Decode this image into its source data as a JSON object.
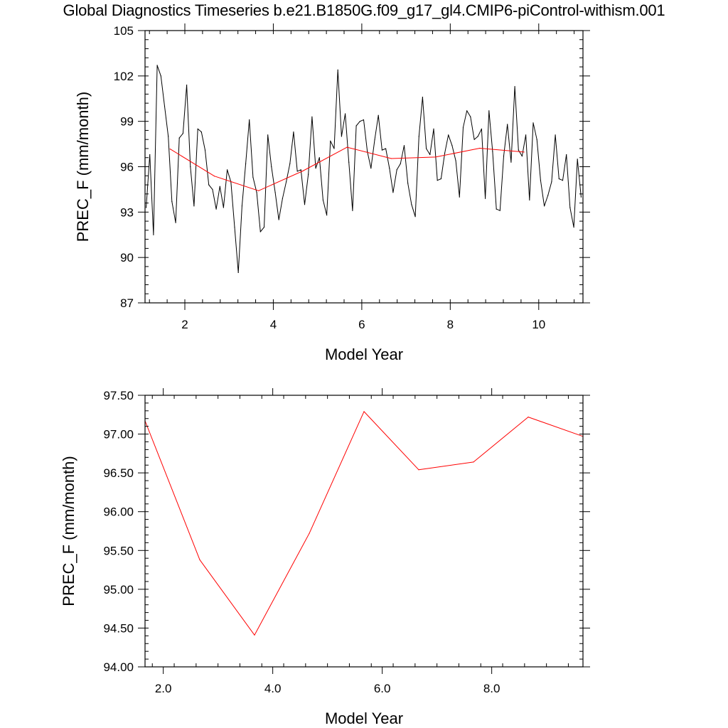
{
  "title": "Global Diagnostics Timeseries b.e21.B1850G.f09_g17_gl4.CMIP6-piControl-withism.001",
  "chart_data": [
    {
      "type": "line",
      "xlabel": "Model Year",
      "ylabel": "PREC_F (mm/month)",
      "xlim": [
        1.1,
        11.0
      ],
      "ylim": [
        87,
        105
      ],
      "xticks": [
        2,
        4,
        6,
        8,
        10
      ],
      "xtick_labels": [
        "2",
        "4",
        "6",
        "8",
        "10"
      ],
      "yticks": [
        87,
        90,
        93,
        96,
        99,
        102,
        105
      ],
      "ytick_labels": [
        "87",
        "90",
        "93",
        "96",
        "99",
        "102",
        "105"
      ],
      "grid": false,
      "series": [
        {
          "color": "#000000",
          "x": [
            1.125,
            1.208,
            1.292,
            1.375,
            1.458,
            1.542,
            1.625,
            1.708,
            1.792,
            1.875,
            1.958,
            2.042,
            2.125,
            2.208,
            2.292,
            2.375,
            2.458,
            2.542,
            2.625,
            2.708,
            2.792,
            2.875,
            2.958,
            3.042,
            3.125,
            3.208,
            3.292,
            3.375,
            3.458,
            3.542,
            3.625,
            3.708,
            3.792,
            3.875,
            3.958,
            4.042,
            4.125,
            4.208,
            4.292,
            4.375,
            4.458,
            4.542,
            4.625,
            4.708,
            4.792,
            4.875,
            4.958,
            5.042,
            5.125,
            5.208,
            5.292,
            5.375,
            5.458,
            5.542,
            5.625,
            5.708,
            5.792,
            5.875,
            5.958,
            6.042,
            6.125,
            6.208,
            6.292,
            6.375,
            6.458,
            6.542,
            6.625,
            6.708,
            6.792,
            6.875,
            6.958,
            7.042,
            7.125,
            7.208,
            7.292,
            7.375,
            7.458,
            7.542,
            7.625,
            7.708,
            7.792,
            7.875,
            7.958,
            8.042,
            8.125,
            8.208,
            8.292,
            8.375,
            8.458,
            8.542,
            8.625,
            8.708,
            8.792,
            8.875,
            8.958,
            9.042,
            9.125,
            9.208,
            9.292,
            9.375,
            9.458,
            9.542,
            9.625,
            9.708,
            9.792,
            9.875,
            9.958,
            10.042,
            10.125,
            10.208,
            10.292,
            10.375,
            10.458,
            10.542,
            10.625,
            10.708,
            10.792,
            10.875,
            10.958
          ],
          "y": [
            93.3,
            96.8,
            91.5,
            102.7,
            102.0,
            100.0,
            98.0,
            93.7,
            92.3,
            97.9,
            98.2,
            101.4,
            96.0,
            93.4,
            98.5,
            98.3,
            97.1,
            94.8,
            94.5,
            93.2,
            94.7,
            93.3,
            95.8,
            95.0,
            92.0,
            89.0,
            93.4,
            96.2,
            99.1,
            95.3,
            94.3,
            91.7,
            92.0,
            98.1,
            96.0,
            94.3,
            92.5,
            93.9,
            95.0,
            96.2,
            98.3,
            95.7,
            95.8,
            93.5,
            95.5,
            99.3,
            95.9,
            96.6,
            93.8,
            92.8,
            97.7,
            97.2,
            102.4,
            98.0,
            99.5,
            96.3,
            93.1,
            98.7,
            99.0,
            99.1,
            97.0,
            95.9,
            97.8,
            99.4,
            97.1,
            97.2,
            95.9,
            94.3,
            95.8,
            96.2,
            97.4,
            94.9,
            93.5,
            92.7,
            98.0,
            100.6,
            97.2,
            96.8,
            98.5,
            95.1,
            95.2,
            96.9,
            98.1,
            97.4,
            96.4,
            94.0,
            98.6,
            99.7,
            99.3,
            97.8,
            98.0,
            98.5,
            93.9,
            99.7,
            97.0,
            93.2,
            93.1,
            96.7,
            98.8,
            96.3,
            101.3,
            97.1,
            96.7,
            98.1,
            93.8,
            98.9,
            97.8,
            95.1,
            93.4,
            94.1,
            95.0,
            98.1,
            95.2,
            95.1,
            96.8,
            93.3,
            92.0,
            96.5,
            94.0
          ]
        },
        {
          "color": "#ff0000",
          "x": [
            1.667,
            2.667,
            3.667,
            4.667,
            5.667,
            6.667,
            7.667,
            8.667,
            9.667
          ],
          "y": [
            97.17,
            95.38,
            94.41,
            95.72,
            97.29,
            96.54,
            96.64,
            97.22,
            96.97
          ]
        }
      ]
    },
    {
      "type": "line",
      "xlabel": "Model Year",
      "ylabel": "PREC_F (mm/month)",
      "xlim": [
        1.667,
        9.667
      ],
      "ylim": [
        94.0,
        97.5
      ],
      "xticks": [
        2,
        4,
        6,
        8
      ],
      "xtick_labels": [
        "2.0",
        "4.0",
        "6.0",
        "8.0"
      ],
      "yticks": [
        94.0,
        94.5,
        95.0,
        95.5,
        96.0,
        96.5,
        97.0,
        97.5
      ],
      "ytick_labels": [
        "94.00",
        "94.50",
        "95.00",
        "95.50",
        "96.00",
        "96.50",
        "97.00",
        "97.50"
      ],
      "grid": false,
      "series": [
        {
          "color": "#ff0000",
          "x": [
            1.667,
            2.667,
            3.667,
            4.667,
            5.667,
            6.667,
            7.667,
            8.667,
            9.667
          ],
          "y": [
            97.17,
            95.38,
            94.41,
            95.72,
            97.29,
            96.54,
            96.64,
            97.22,
            96.97
          ]
        }
      ]
    }
  ]
}
